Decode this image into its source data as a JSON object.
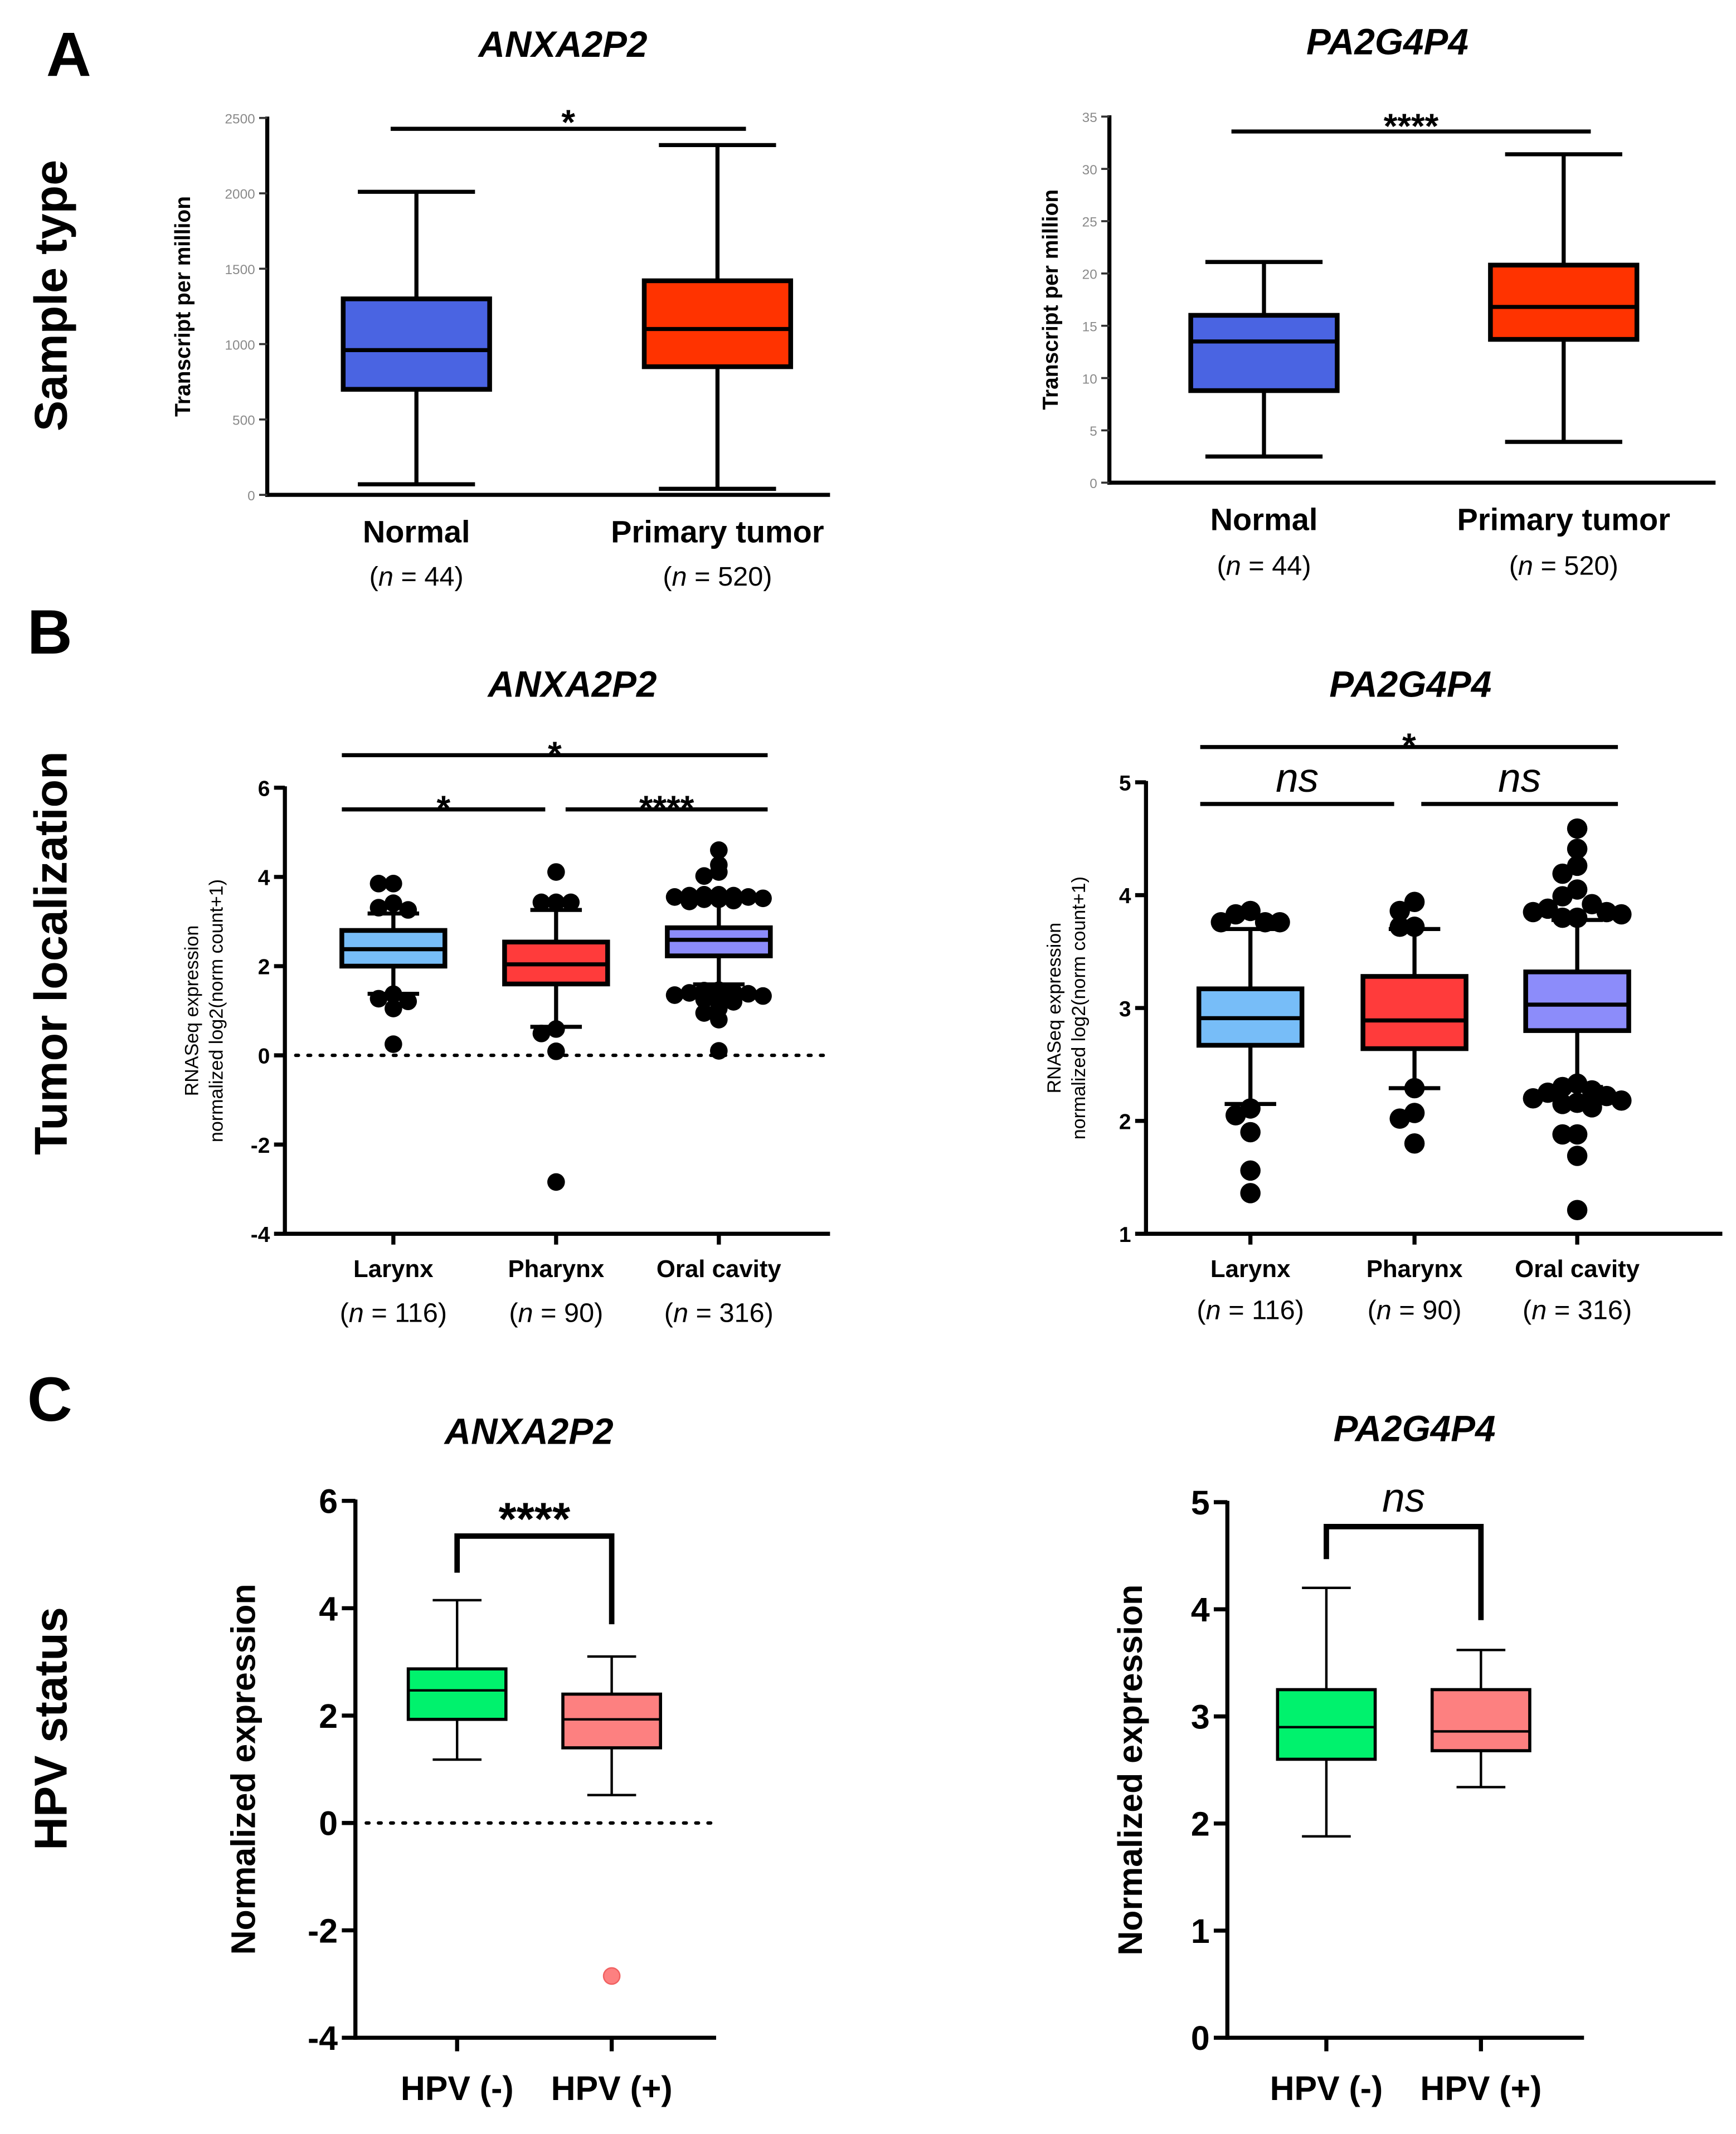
{
  "panels": [
    {
      "letter": "A",
      "row_label": "Sample type"
    },
    {
      "letter": "B",
      "row_label": "Tumor localization"
    },
    {
      "letter": "C",
      "row_label": "HPV status"
    }
  ],
  "chart_data": [
    {
      "type": "box",
      "panel": "A",
      "title": "ANXA2P2",
      "ylabel": "Transcript per million",
      "ylim": [
        0,
        2500
      ],
      "yticks": [
        0,
        500,
        1000,
        1500,
        2000,
        2500
      ],
      "categories": [
        "Normal",
        "Primary tumor"
      ],
      "n_labels": [
        [
          "44"
        ],
        [
          "520"
        ]
      ],
      "n_prefix": "n",
      "n_eq": " = ",
      "groups": [
        {
          "name": "Normal",
          "min": 70,
          "q1": 700,
          "median": 960,
          "q3": 1300,
          "max": 2010,
          "color": "#4a64e2",
          "outliers": []
        },
        {
          "name": "Primary tumor",
          "min": 40,
          "q1": 850,
          "median": 1100,
          "q3": 1420,
          "max": 2320,
          "color": "#ff3300",
          "outliers": []
        }
      ],
      "comparisons": [
        {
          "from": 0,
          "to": 1,
          "label": "*"
        }
      ]
    },
    {
      "type": "box",
      "panel": "A",
      "title": "PA2G4P4",
      "ylabel": "Transcript per million",
      "ylim": [
        0,
        35
      ],
      "yticks": [
        0,
        5,
        10,
        15,
        20,
        25,
        30,
        35
      ],
      "categories": [
        "Normal",
        "Primary tumor"
      ],
      "n_labels": [
        [
          "44"
        ],
        [
          "520"
        ]
      ],
      "n_prefix": "n",
      "n_eq": " = ",
      "groups": [
        {
          "name": "Normal",
          "min": 2.5,
          "q1": 8.8,
          "median": 13.5,
          "q3": 16.0,
          "max": 21.1,
          "color": "#4a64e2",
          "outliers": []
        },
        {
          "name": "Primary tumor",
          "min": 3.9,
          "q1": 13.7,
          "median": 16.8,
          "q3": 20.8,
          "max": 31.4,
          "color": "#ff3300",
          "outliers": []
        }
      ],
      "comparisons": [
        {
          "from": 0,
          "to": 1,
          "label": "****"
        }
      ]
    },
    {
      "type": "box",
      "panel": "B",
      "title": "ANXA2P2",
      "ylabel": [
        "RNASeq expression",
        "normalized log2(norm count+1)"
      ],
      "ylim": [
        -4,
        6
      ],
      "yticks": [
        -4,
        -2,
        0,
        2,
        4,
        6
      ],
      "reference_line": 0,
      "categories": [
        "Larynx",
        "Pharynx",
        "Oral cavity"
      ],
      "n_labels": [
        [
          "116"
        ],
        [
          "90"
        ],
        [
          "316"
        ]
      ],
      "n_prefix": "n",
      "n_eq": " = ",
      "groups": [
        {
          "name": "Larynx",
          "min": 1.38,
          "q1": 2.0,
          "median": 2.38,
          "q3": 2.8,
          "max": 3.18,
          "color": "#77bdf8",
          "outliers": [
            3.85,
            3.85,
            3.41,
            3.31,
            3.26,
            1.37,
            1.27,
            1.21,
            1.05,
            0.25
          ]
        },
        {
          "name": "Pharynx",
          "min": 0.64,
          "q1": 1.6,
          "median": 2.04,
          "q3": 2.54,
          "max": 3.26,
          "color": "#ff3b3b",
          "outliers": [
            4.11,
            3.43,
            3.43,
            3.43,
            0.59,
            0.49,
            0.09,
            -2.84
          ]
        },
        {
          "name": "Oral cavity",
          "min": 1.59,
          "q1": 2.23,
          "median": 2.59,
          "q3": 2.86,
          "max": 3.55,
          "color": "#8c8cfa",
          "outliers": [
            4.6,
            4.27,
            4.11,
            4.02,
            3.6,
            3.6,
            3.58,
            3.58,
            3.55,
            3.55,
            3.52,
            3.5,
            3.5,
            3.47,
            3.45,
            1.46,
            1.45,
            1.42,
            1.4,
            1.38,
            1.35,
            1.33,
            1.3,
            1.25,
            1.2,
            1.05,
            0.95,
            0.8,
            0.1
          ]
        }
      ],
      "comparisons": [
        {
          "from": 0,
          "to": 2,
          "label": "*"
        },
        {
          "from": 0,
          "to": 1,
          "label": "*"
        },
        {
          "from": 1,
          "to": 2,
          "label": "****"
        }
      ]
    },
    {
      "type": "box",
      "panel": "B",
      "title": "PA2G4P4",
      "ylabel": [
        "RNASeq expression",
        "normalized log2(norm count+1)"
      ],
      "ylim": [
        1,
        5
      ],
      "yticks": [
        1,
        2,
        3,
        4,
        5
      ],
      "categories": [
        "Larynx",
        "Pharynx",
        "Oral cavity"
      ],
      "n_labels": [
        [
          "116"
        ],
        [
          "90"
        ],
        [
          "316"
        ]
      ],
      "n_prefix": "n",
      "n_eq": " = ",
      "groups": [
        {
          "name": "Larynx",
          "min": 2.15,
          "q1": 2.67,
          "median": 2.91,
          "q3": 3.17,
          "max": 3.7,
          "color": "#77bdf8",
          "outliers": [
            3.86,
            3.83,
            3.76,
            3.76,
            3.76,
            2.11,
            2.05,
            1.9,
            1.56,
            1.36
          ]
        },
        {
          "name": "Pharynx",
          "min": 2.29,
          "q1": 2.64,
          "median": 2.89,
          "q3": 3.28,
          "max": 3.7,
          "color": "#ff3b3b",
          "outliers": [
            3.94,
            3.86,
            3.72,
            3.72,
            2.29,
            2.07,
            2.02,
            1.8
          ]
        },
        {
          "name": "Oral cavity",
          "min": 2.3,
          "q1": 2.8,
          "median": 3.03,
          "q3": 3.32,
          "max": 3.78,
          "color": "#8c8cfa",
          "outliers": [
            4.59,
            4.41,
            4.26,
            4.19,
            4.05,
            3.99,
            3.92,
            3.88,
            3.85,
            3.85,
            3.83,
            3.8,
            3.8,
            2.33,
            2.3,
            2.27,
            2.25,
            2.22,
            2.2,
            2.18,
            2.16,
            2.15,
            2.12,
            1.88,
            1.88,
            1.69,
            1.21
          ]
        }
      ],
      "comparisons": [
        {
          "from": 0,
          "to": 2,
          "label": "*"
        },
        {
          "from": 0,
          "to": 1,
          "label": "ns"
        },
        {
          "from": 1,
          "to": 2,
          "label": "ns"
        }
      ]
    },
    {
      "type": "box",
      "panel": "C",
      "title": "ANXA2P2",
      "ylabel": "Normalized expression",
      "ylim": [
        -4,
        6
      ],
      "yticks": [
        -4,
        -2,
        0,
        2,
        4,
        6
      ],
      "reference_line": 0,
      "categories": [
        "HPV (-)",
        "HPV (+)"
      ],
      "groups": [
        {
          "name": "HPV (-)",
          "min": 1.18,
          "q1": 1.93,
          "median": 2.47,
          "q3": 2.87,
          "max": 4.15,
          "color": "#00f26d",
          "outliers": []
        },
        {
          "name": "HPV (+)",
          "min": 0.52,
          "q1": 1.4,
          "median": 1.93,
          "q3": 2.4,
          "max": 3.1,
          "color": "#fd8080",
          "outliers": [
            -2.85
          ]
        }
      ],
      "comparisons": [
        {
          "from": 0,
          "to": 1,
          "label": "****"
        }
      ]
    },
    {
      "type": "box",
      "panel": "C",
      "title": "PA2G4P4",
      "ylabel": "Normalized expression",
      "ylim": [
        0,
        5
      ],
      "yticks": [
        0,
        1,
        2,
        3,
        4,
        5
      ],
      "categories": [
        "HPV (-)",
        "HPV (+)"
      ],
      "groups": [
        {
          "name": "HPV (-)",
          "min": 1.88,
          "q1": 2.6,
          "median": 2.9,
          "q3": 3.25,
          "max": 4.2,
          "color": "#00f26d",
          "outliers": []
        },
        {
          "name": "HPV (+)",
          "min": 2.34,
          "q1": 2.68,
          "median": 2.86,
          "q3": 3.25,
          "max": 3.62,
          "color": "#fd8080",
          "outliers": []
        }
      ],
      "comparisons": [
        {
          "from": 0,
          "to": 1,
          "label": "ns"
        }
      ]
    }
  ]
}
